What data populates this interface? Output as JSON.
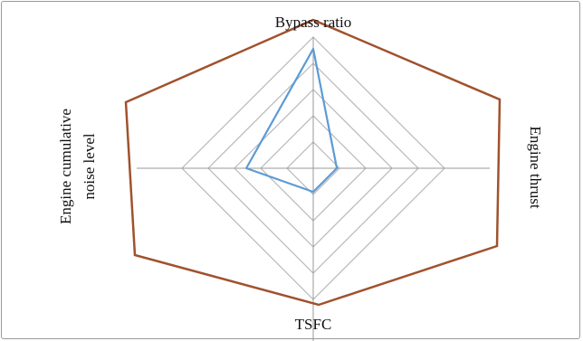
{
  "chart_data": {
    "type": "radar",
    "axes": [
      "Bypass ratio",
      "Engine thrust",
      "TSFC",
      "Engine cumulative noise level"
    ],
    "axis_title_lines": {
      "Engine cumulative noise level": [
        "Engine cumulative",
        "noise level"
      ]
    },
    "rings": 5,
    "scale_max": 1.0,
    "grid": true,
    "series": [
      {
        "values": [
          0.91,
          0.18,
          0.18,
          0.51
        ],
        "color": "#5b9bd5"
      }
    ],
    "outer_boundary": {
      "shape": "hexagon",
      "color": "#a0522d"
    }
  }
}
